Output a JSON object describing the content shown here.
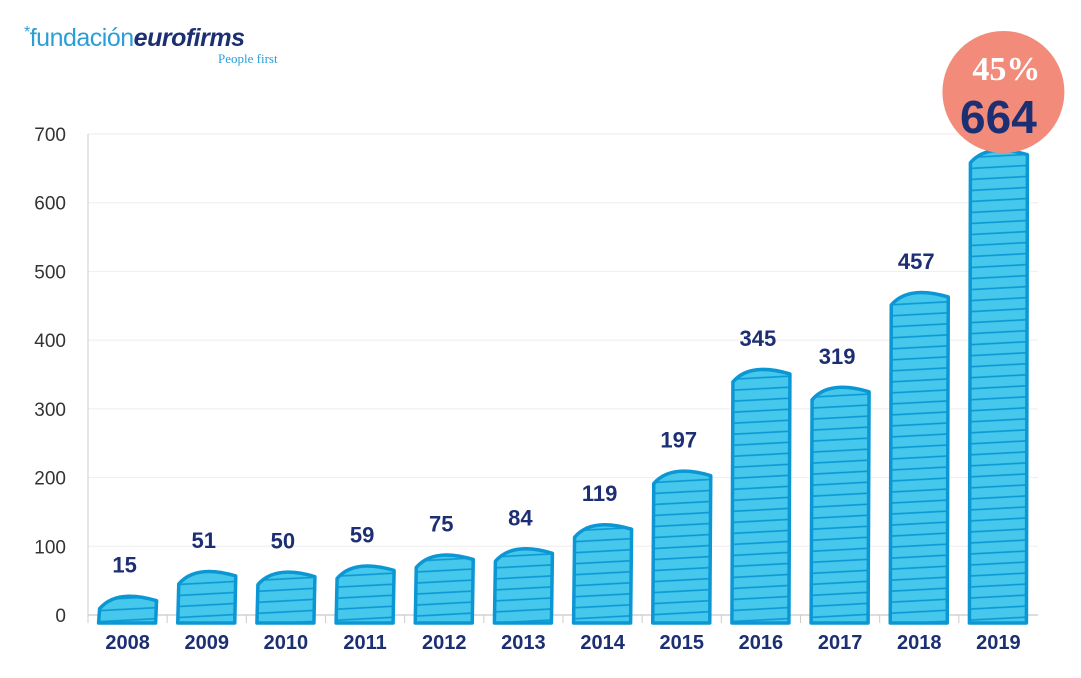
{
  "logo": {
    "name_light": "fundación",
    "name_bold": "eurofirms",
    "tagline": "People first"
  },
  "chart_data": {
    "type": "bar",
    "title": "",
    "xlabel": "",
    "ylabel": "",
    "categories": [
      "2008",
      "2009",
      "2010",
      "2011",
      "2012",
      "2013",
      "2014",
      "2015",
      "2016",
      "2017",
      "2018",
      "2019"
    ],
    "values": [
      15,
      51,
      50,
      59,
      75,
      84,
      119,
      197,
      345,
      319,
      457,
      664
    ],
    "ylim": [
      0,
      700
    ],
    "yticks": [
      0,
      100,
      200,
      300,
      400,
      500,
      600,
      700
    ],
    "grid": true,
    "highlight": {
      "category": "2019",
      "percent_label": "45%",
      "value_label": "664",
      "color": "#f28b7a"
    },
    "colors": {
      "bar_fill": "#45c8ec",
      "bar_stroke": "#0a97d4",
      "label": "#1d2f73",
      "axis_text": "#333333"
    }
  }
}
